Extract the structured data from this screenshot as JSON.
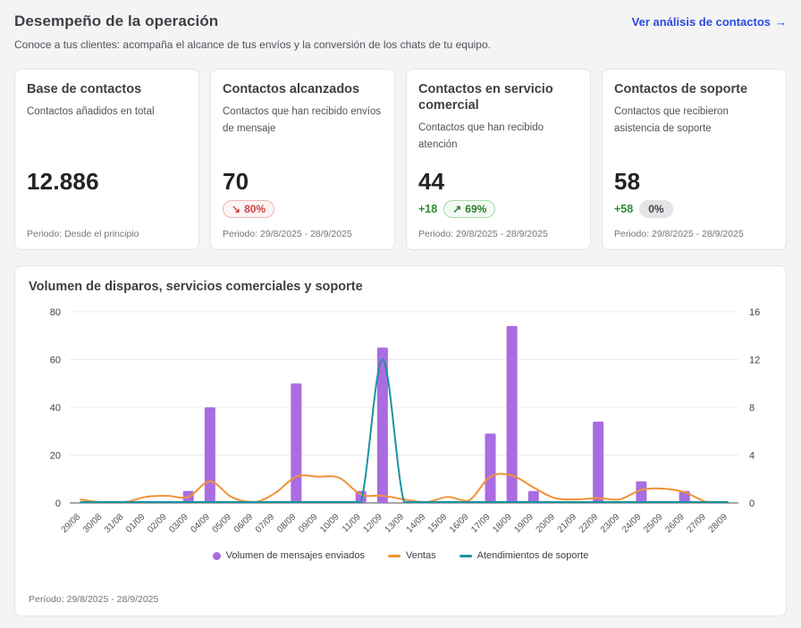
{
  "page": {
    "title": "Desempeño de la operación",
    "subtitle": "Conoce a tus clientes: acompaña el alcance de tus envíos y la conversión de los chats de tu equipo.",
    "link_label": "Ver análisis de contactos",
    "link_arrow": "→"
  },
  "cards": [
    {
      "title": "Base de contactos",
      "description": "Contactos añadidos en total",
      "value": "12.886",
      "period": "Periodo: Desde el principio"
    },
    {
      "title": "Contactos alcanzados",
      "description": "Contactos que han recibido envíos de mensaje",
      "value": "70",
      "badge": {
        "icon": "↘",
        "text": "80%",
        "type": "negative"
      },
      "period": "Periodo: 29/8/2025 - 28/9/2025"
    },
    {
      "title": "Contactos en servicio comercial",
      "description": "Contactos que han recibido atención",
      "value": "44",
      "delta": "+18",
      "badge": {
        "icon": "↗",
        "text": "69%",
        "type": "positive"
      },
      "period": "Periodo: 29/8/2025 - 28/9/2025"
    },
    {
      "title": "Contactos de soporte",
      "description": "Contactos que recibieron asistencia de soporte",
      "value": "58",
      "delta": "+58",
      "badge": {
        "icon": "",
        "text": "0%",
        "type": "neutral"
      },
      "period": "Periodo: 29/8/2025 - 28/9/2025"
    }
  ],
  "chart_card": {
    "title": "Volumen de disparos, servicios comerciales y soporte",
    "period": "Período: 29/8/2025 - 28/9/2025"
  },
  "chart_data": {
    "type": "bar",
    "subtype": "combo-bar-line-dual-axis",
    "title": "Volumen de disparos, servicios comerciales y soporte",
    "categories": [
      "29/08",
      "30/08",
      "31/08",
      "01/09",
      "02/09",
      "03/09",
      "04/09",
      "05/09",
      "06/09",
      "07/09",
      "08/09",
      "09/09",
      "10/09",
      "11/09",
      "12/09",
      "13/09",
      "14/09",
      "15/09",
      "16/09",
      "17/09",
      "18/09",
      "19/09",
      "20/09",
      "21/09",
      "22/09",
      "23/09",
      "24/09",
      "25/09",
      "26/09",
      "27/09",
      "28/09"
    ],
    "series": [
      {
        "name": "Volumen de mensajes enviados",
        "type": "bar",
        "axis": "left",
        "color": "#aa6ce0",
        "values": [
          0,
          0,
          0,
          0,
          0,
          5,
          40,
          0,
          0,
          0,
          50,
          0,
          0,
          5,
          65,
          0,
          0,
          0,
          0,
          29,
          74,
          5,
          0,
          0,
          34,
          0,
          9,
          0,
          5,
          0,
          0
        ]
      },
      {
        "name": "Ventas",
        "type": "line",
        "axis": "right",
        "color": "#f09238",
        "values": [
          0.3,
          0,
          0,
          0.5,
          0.6,
          0.5,
          1.8,
          0.5,
          0,
          0.8,
          2.2,
          2.2,
          2.1,
          0.7,
          0.6,
          0.3,
          0,
          0.5,
          0.2,
          2.2,
          2.3,
          1.3,
          0.4,
          0.3,
          0.4,
          0.3,
          1.1,
          1.2,
          0.9,
          0.1,
          0
        ]
      },
      {
        "name": "Atendimientos de soporte",
        "type": "line",
        "axis": "right",
        "color": "#1b93a0",
        "values": [
          0,
          0,
          0,
          0,
          0,
          0,
          0,
          0,
          0,
          0,
          0,
          0,
          0,
          0,
          12,
          0,
          0,
          0,
          0,
          0,
          0,
          0,
          0,
          0,
          0,
          0,
          0,
          0,
          0,
          0,
          0
        ]
      }
    ],
    "left_axis": {
      "min": 0,
      "max": 80,
      "ticks": [
        0,
        20,
        40,
        60,
        80
      ]
    },
    "right_axis": {
      "min": 0,
      "max": 16,
      "ticks": [
        0,
        4,
        8,
        12,
        16
      ]
    },
    "grid": true,
    "legend_position": "bottom"
  },
  "colors": {
    "accent_link": "#2b4adf",
    "bar_purple": "#aa6ce0",
    "line_orange": "#f09238",
    "line_teal": "#1b93a0",
    "positive_green": "#2f8a38",
    "negative_red": "#cc4444",
    "page_bg": "#f4f4f5"
  }
}
